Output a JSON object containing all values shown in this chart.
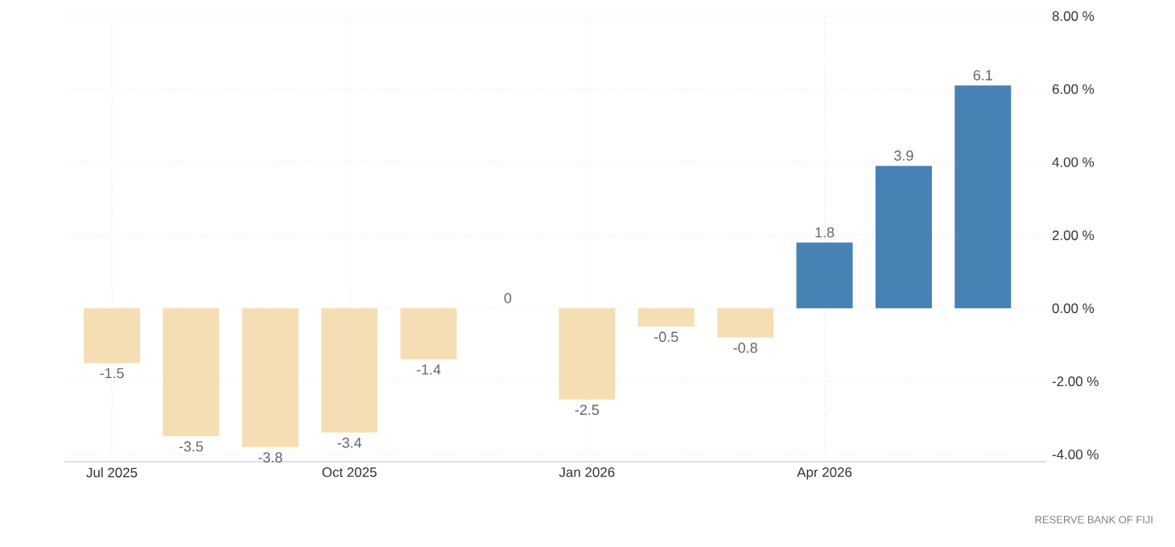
{
  "chart_data": {
    "type": "bar",
    "categories": [
      "Jul 2025",
      null,
      null,
      "Oct 2025",
      null,
      null,
      "Jan 2026",
      null,
      null,
      "Apr 2026",
      null,
      null
    ],
    "values": [
      -1.5,
      -3.5,
      -3.8,
      -3.4,
      -1.4,
      0,
      -2.5,
      -0.5,
      -0.8,
      1.8,
      3.9,
      6.1
    ],
    "colors": [
      "#f5deb3",
      "#f5deb3",
      "#f5deb3",
      "#f5deb3",
      "#f5deb3",
      "#f5deb3",
      "#f5deb3",
      "#f5deb3",
      "#f5deb3",
      "#4682b4",
      "#4682b4",
      "#4682b4"
    ],
    "ylim": [
      -4.2,
      8
    ],
    "yticks": [
      {
        "value": -4,
        "label": "-4.00 %"
      },
      {
        "value": -2,
        "label": "-2.00 %"
      },
      {
        "value": 0,
        "label": "0.00 %"
      },
      {
        "value": 2,
        "label": "2.00 %"
      },
      {
        "value": 4,
        "label": "4.00 %"
      },
      {
        "value": 6,
        "label": "6.00 %"
      },
      {
        "value": 8,
        "label": "8.00 %"
      }
    ],
    "grid": true,
    "data_labels": true,
    "annotations": [
      "RESERVE BANK OF FIJI"
    ]
  }
}
